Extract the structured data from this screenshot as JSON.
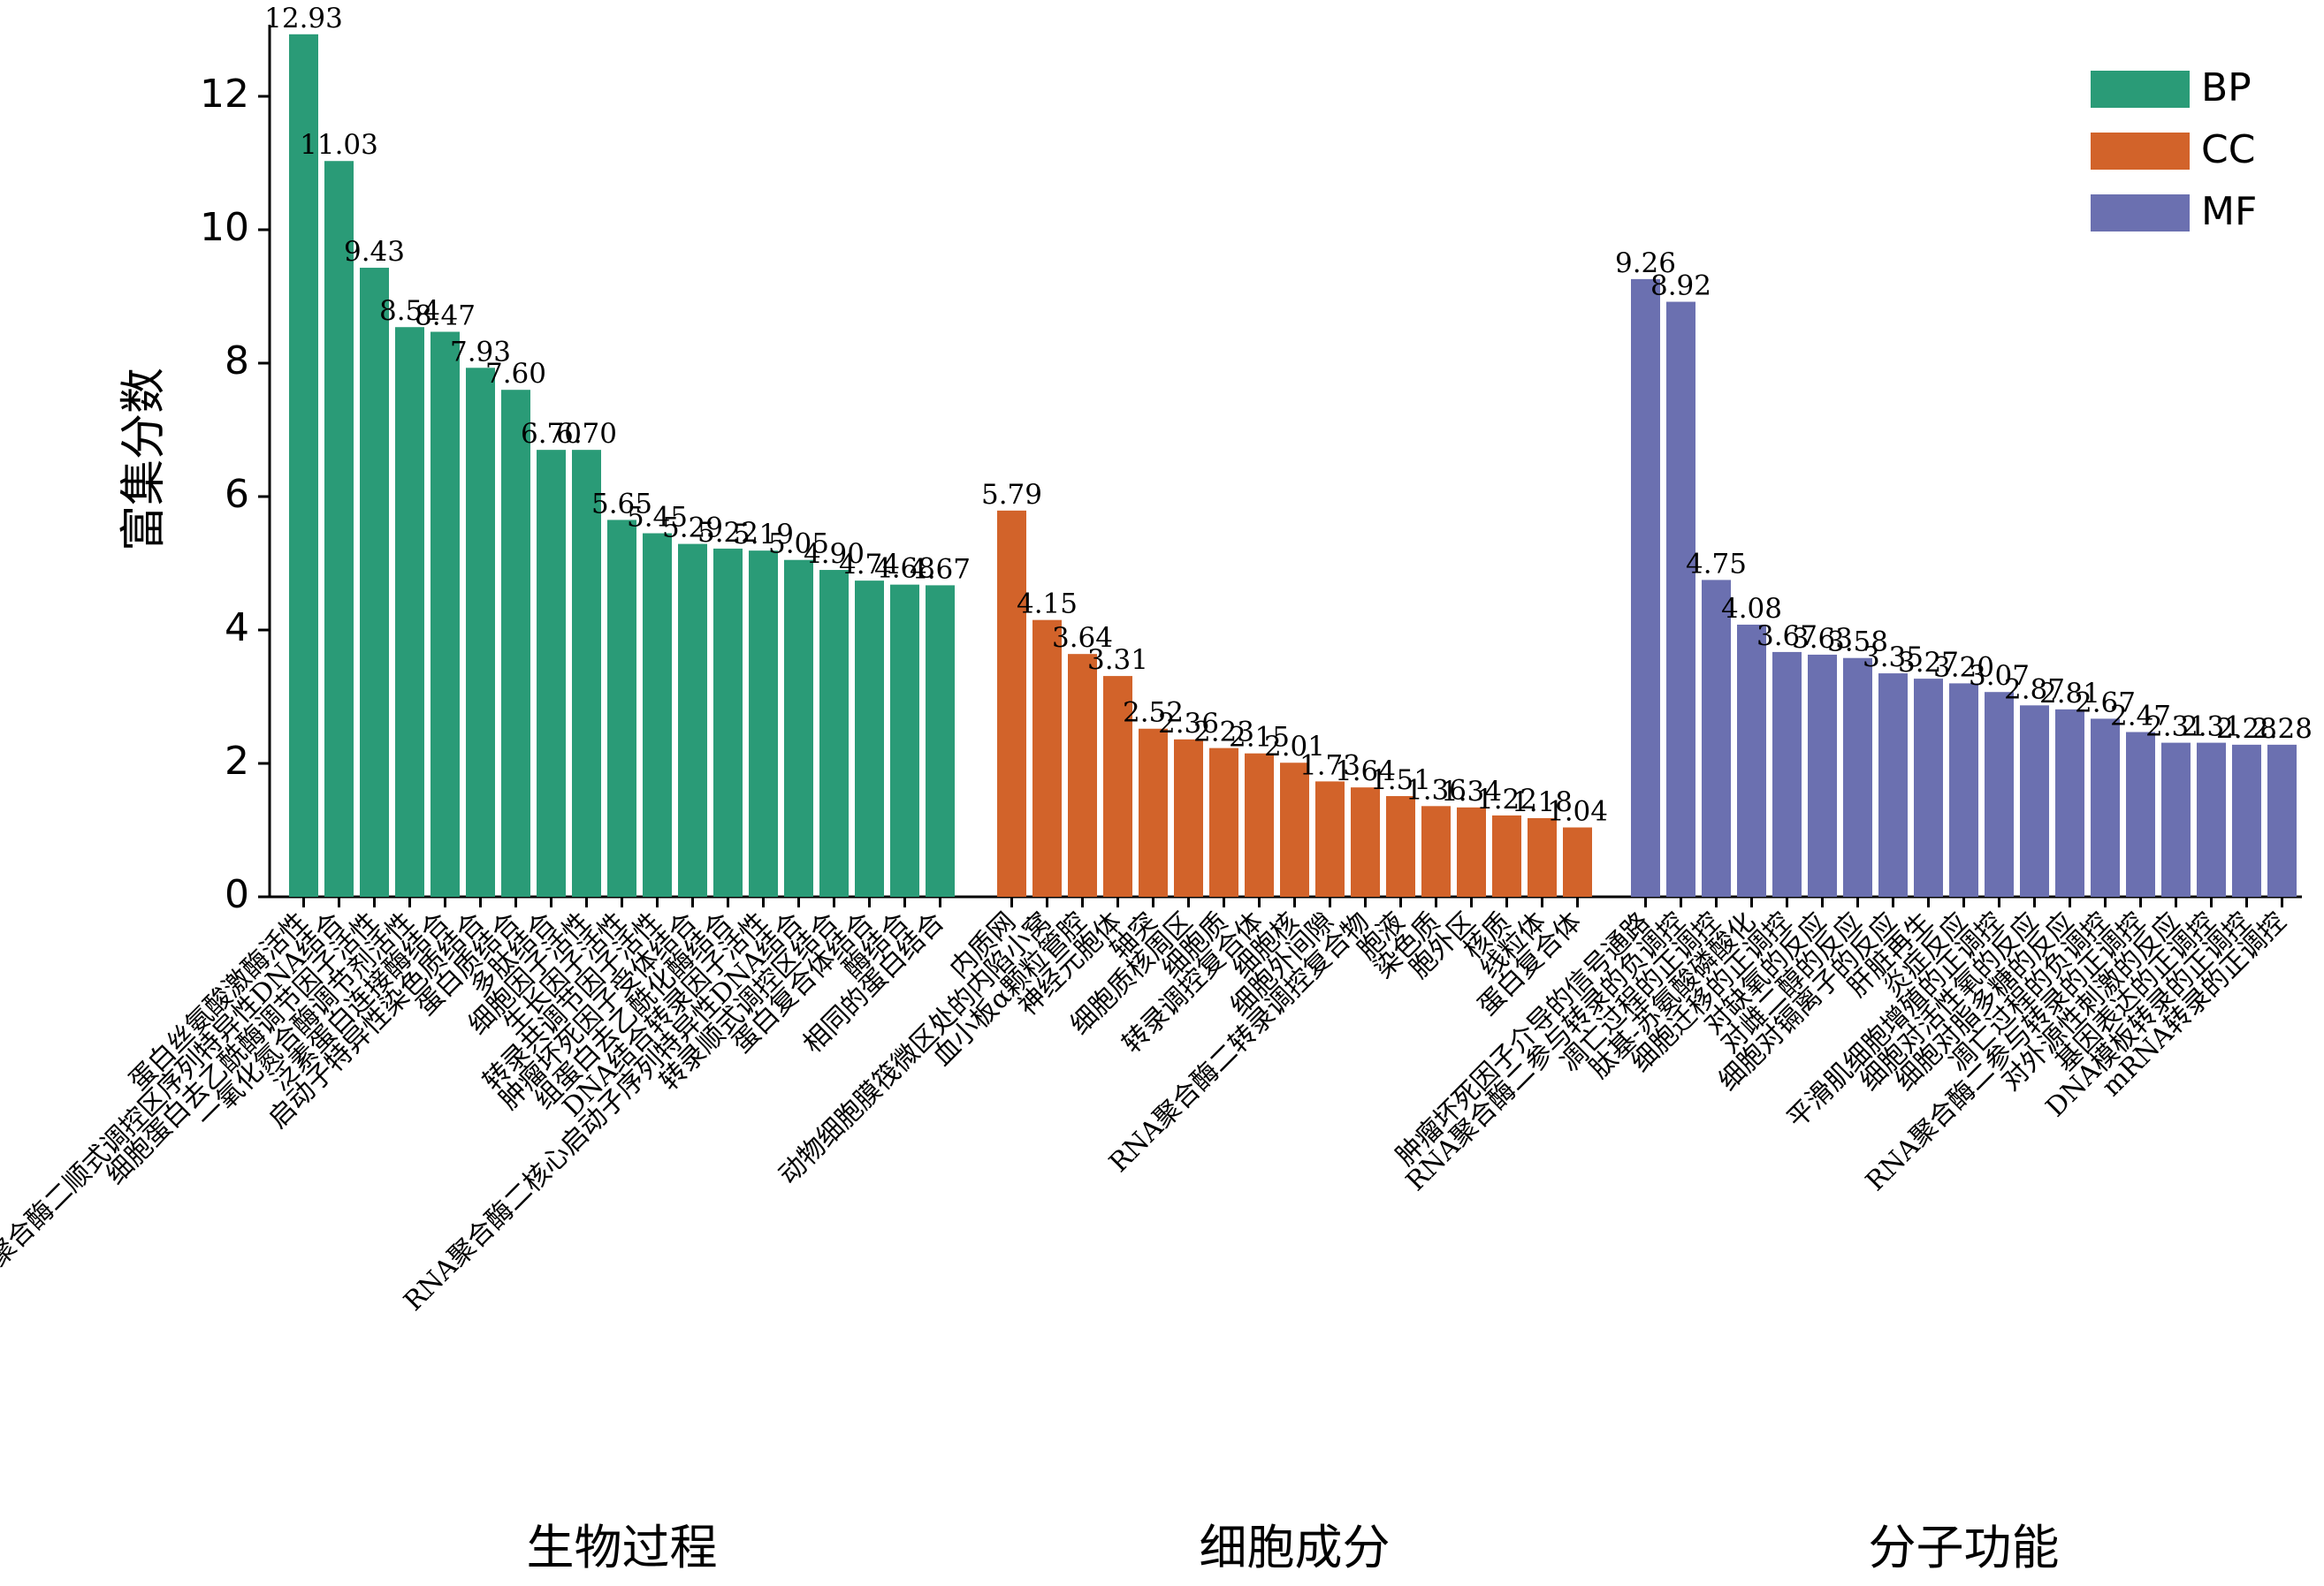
{
  "chart_data": {
    "type": "bar",
    "title": "",
    "ylabel": "富集分数",
    "xlabel": "",
    "ylim": [
      0,
      13
    ],
    "yticks": [
      0,
      2,
      4,
      6,
      8,
      10,
      12
    ],
    "grid": false,
    "legend_position": "top-right",
    "groups": [
      {
        "name": "BP",
        "label": "生物过程",
        "color": "#2a9b77",
        "categories": [
          "蛋白丝氨酸激酶活性",
          "RNA聚合酶二顺式调控区序列特异性DNA结合",
          "细胞蛋白去乙酰酶调节因子活性",
          "一氧化氮合酶调节剂活性",
          "泛素蛋白连接酶结合",
          "启动子特异性染色质结合",
          "蛋白质结合",
          "多肽结合",
          "细胞因子活性",
          "生长因子活性",
          "转录共调节因子活性",
          "肿瘤坏死因子受体结合",
          "组蛋白去乙酰化酶结合",
          "DNA结合转录因子活性",
          "RNA聚合酶二核心启动子序列特异性DNA结合",
          "转录顺式调控区结合",
          "蛋白复合体结合",
          "酶结合",
          "相同的蛋白结合"
        ],
        "values": [
          12.93,
          11.03,
          9.43,
          8.54,
          8.47,
          7.93,
          7.6,
          6.7,
          6.7,
          5.65,
          5.45,
          5.29,
          5.22,
          5.19,
          5.05,
          4.9,
          4.74,
          4.68,
          4.67
        ],
        "labels": [
          "12.93",
          "11.03",
          "9.43",
          "8.54",
          "8.47",
          "7.93",
          "7.60",
          "6.70",
          "6.70",
          "5.65",
          "5.45",
          "5.29",
          "5.22",
          "5.19",
          "5.05",
          "4.90",
          "4.74",
          "4.68",
          "4.67"
        ]
      },
      {
        "name": "CC",
        "label": "细胞成分",
        "color": "#d2632a",
        "categories": [
          "内质网",
          "动物细胞膜筏微区处的内陷小窝",
          "血小板α颗粒管腔",
          "神经元胞体",
          "轴突",
          "细胞质核周区",
          "细胞质",
          "转录调控复合体",
          "细胞核",
          "细胞外间隙",
          "RNA聚合酶二转录调控复合物",
          "胞液",
          "染色质",
          "胞外区",
          "核质",
          "线粒体",
          "蛋白复合体"
        ],
        "values": [
          5.79,
          4.15,
          3.64,
          3.31,
          2.52,
          2.36,
          2.23,
          2.15,
          2.01,
          1.73,
          1.64,
          1.51,
          1.36,
          1.34,
          1.22,
          1.18,
          1.04
        ],
        "labels": [
          "5.79",
          "4.15",
          "3.64",
          "3.31",
          "2.52",
          "2.36",
          "2.23",
          "2.15",
          "2.01",
          "1.73",
          "1.64",
          "1.51",
          "1.36",
          "1.34",
          "1.22",
          "1.18",
          "1.04"
        ]
      },
      {
        "name": "MF",
        "label": "分子功能",
        "color": "#6b70b0",
        "categories": [
          "肿瘤坏死因子介导的信号通路",
          "RNA聚合酶二参与转录的负调控",
          "凋亡过程的正调控",
          "肽基-苏氨酸磷酸化",
          "细胞迁移的正调控",
          "对缺氧的反应",
          "对雌二醇的反应",
          "细胞对镉离子的反应",
          "肝脏再生",
          "炎症反应",
          "平滑肌细胞增殖的正调控",
          "细胞对活性氧的反应",
          "细胞对脂多糖的反应",
          "凋亡过程的负调控",
          "RNA聚合酶二参与转录的正调控",
          "对外源性刺激的反应",
          "基因表达的正调控",
          "DNA模板转录的正调控",
          "mRNA转录的正调控"
        ],
        "values": [
          9.26,
          8.92,
          4.75,
          4.08,
          3.67,
          3.63,
          3.58,
          3.35,
          3.27,
          3.2,
          3.07,
          2.87,
          2.81,
          2.67,
          2.47,
          2.31,
          2.31,
          2.28,
          2.28
        ],
        "labels": [
          "9.26",
          "8.92",
          "4.75",
          "4.08",
          "3.67",
          "3.63",
          "3.58",
          "3.35",
          "3.27",
          "3.20",
          "3.07",
          "2.87",
          "2.81",
          "2.67",
          "2.47",
          "2.31",
          "2.31",
          "2.28",
          "2.28"
        ]
      }
    ]
  }
}
